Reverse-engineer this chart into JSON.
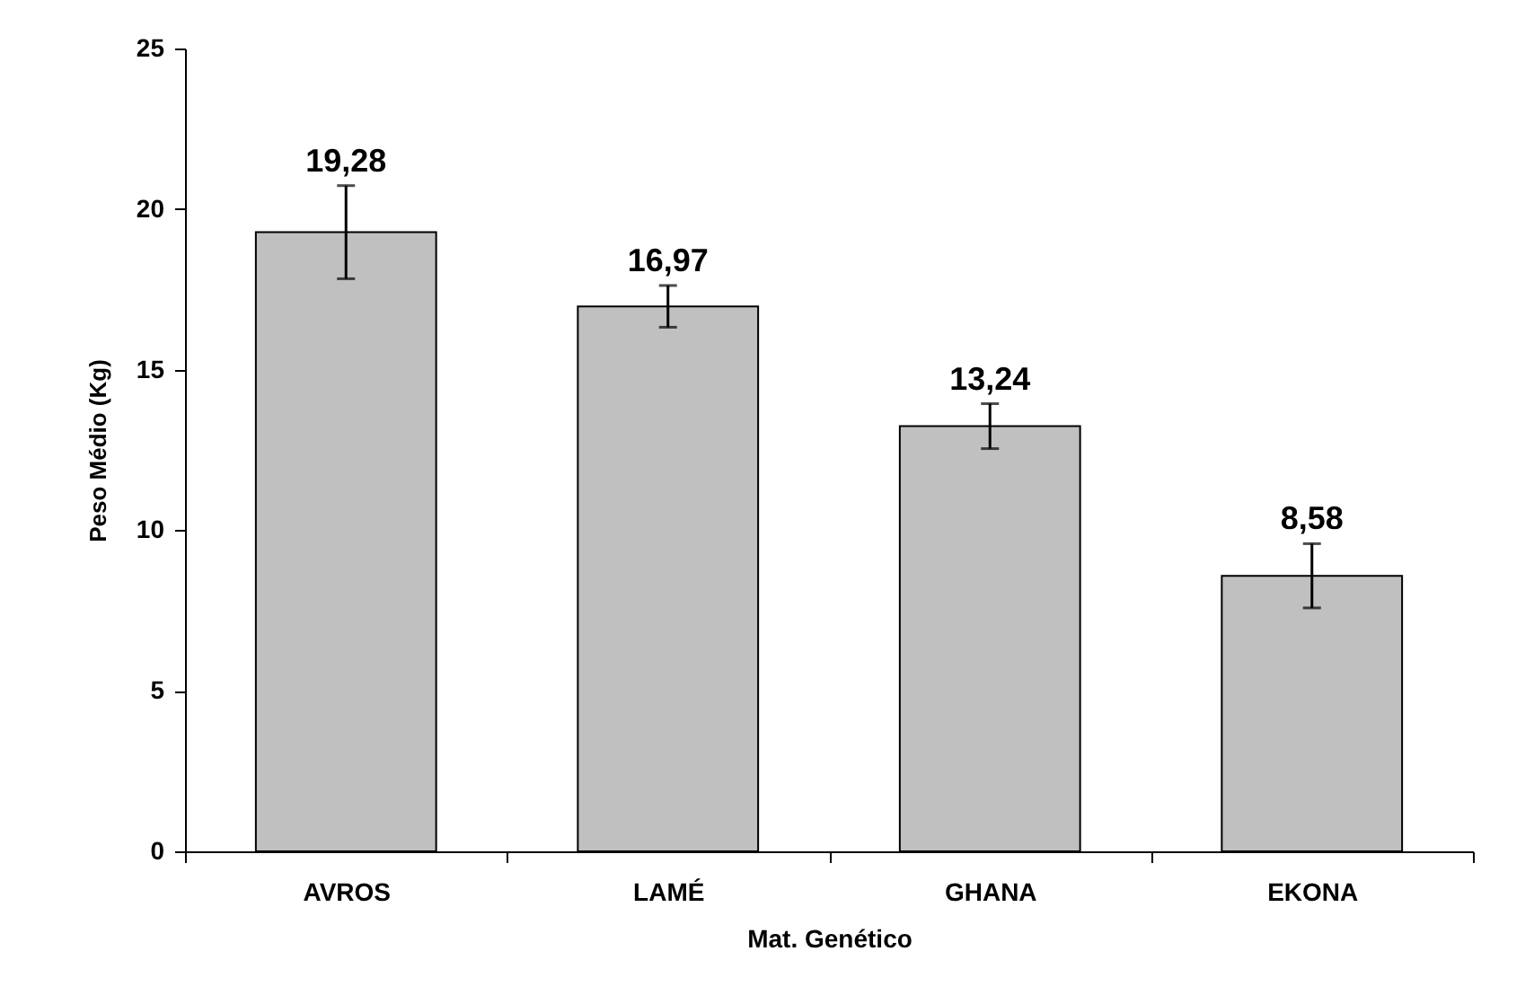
{
  "chart_data": {
    "type": "bar",
    "xlabel": "Mat. Genético",
    "ylabel": "Peso Médio (Kg)",
    "categories": [
      "AVROS",
      "LAMÉ",
      "GHANA",
      "EKONA"
    ],
    "values": [
      19.28,
      16.97,
      13.24,
      8.58
    ],
    "errors": [
      1.45,
      0.65,
      0.7,
      1.0
    ],
    "value_labels": [
      "19,28",
      "16,97",
      "13,24",
      "8,58"
    ],
    "color": "#c0c0c0",
    "ylim": [
      0,
      25
    ],
    "yticks": [
      0,
      5,
      10,
      15,
      20,
      25
    ],
    "grid": false
  }
}
